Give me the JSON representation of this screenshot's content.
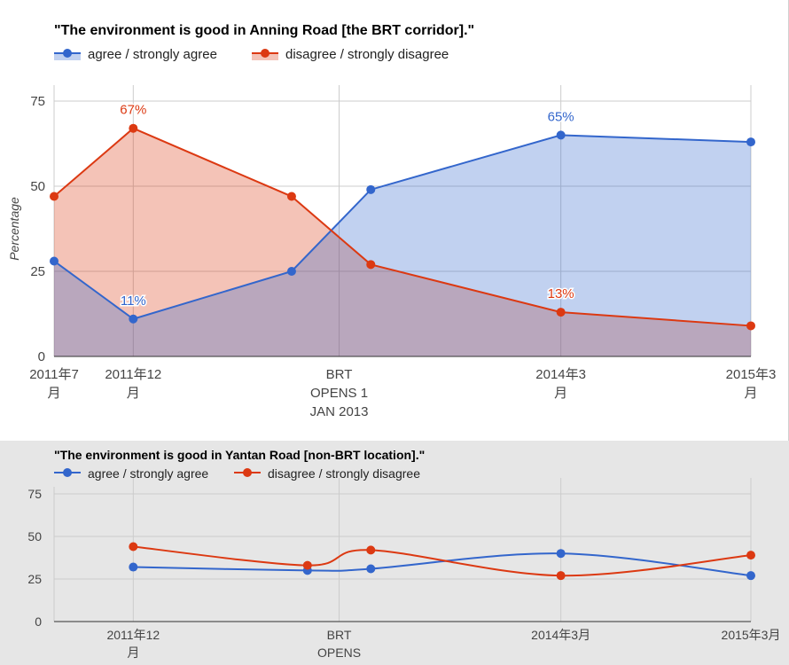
{
  "chart_data": [
    {
      "type": "area",
      "title": "\"The environment is good in Anning Road [the BRT corridor].\"",
      "ylabel": "Percentage",
      "ylim": [
        0,
        75
      ],
      "yticks": [
        0,
        25,
        50,
        75
      ],
      "xticks": [
        {
          "t": 0,
          "lines": [
            "2011年7",
            "月"
          ]
        },
        {
          "t": 5,
          "lines": [
            "2011年12",
            "月"
          ]
        },
        {
          "t": 18,
          "lines": [
            "BRT",
            "OPENS 1",
            "JAN 2013"
          ]
        },
        {
          "t": 32,
          "lines": [
            "2014年3",
            "月"
          ]
        },
        {
          "t": 44,
          "lines": [
            "2015年3",
            "月"
          ]
        }
      ],
      "legend_position": "top-left",
      "series": [
        {
          "name": "agree / strongly agree",
          "color": "#3366cc",
          "points": [
            {
              "t": 0,
              "y": 28
            },
            {
              "t": 5,
              "y": 11
            },
            {
              "t": 15,
              "y": 25
            },
            {
              "t": 20,
              "y": 49
            },
            {
              "t": 32,
              "y": 65
            },
            {
              "t": 44,
              "y": 63
            }
          ]
        },
        {
          "name": "disagree / strongly disagree",
          "color": "#dc3912",
          "points": [
            {
              "t": 0,
              "y": 47
            },
            {
              "t": 5,
              "y": 67
            },
            {
              "t": 15,
              "y": 47
            },
            {
              "t": 20,
              "y": 27
            },
            {
              "t": 32,
              "y": 13
            },
            {
              "t": 44,
              "y": 9
            }
          ]
        }
      ],
      "annotations": [
        {
          "series": 1,
          "t": 5,
          "y": 67,
          "text": "67%"
        },
        {
          "series": 0,
          "t": 5,
          "y": 11,
          "text": "11%"
        },
        {
          "series": 0,
          "t": 32,
          "y": 65,
          "text": "65%"
        },
        {
          "series": 1,
          "t": 32,
          "y": 13,
          "text": "13%"
        }
      ]
    },
    {
      "type": "line",
      "title": "\"The environment is good in Yantan Road [non-BRT location].\"",
      "ylim": [
        0,
        75
      ],
      "yticks": [
        0,
        25,
        50,
        75
      ],
      "xticks": [
        {
          "t": 5,
          "lines": [
            "2011年12",
            "月"
          ]
        },
        {
          "t": 18,
          "lines": [
            "BRT",
            "OPENS"
          ]
        },
        {
          "t": 32,
          "lines": [
            "2014年3月"
          ]
        },
        {
          "t": 44,
          "lines": [
            "2015年3月"
          ]
        }
      ],
      "legend_position": "top-left",
      "series": [
        {
          "name": "agree / strongly agree",
          "color": "#3366cc",
          "points": [
            {
              "t": 5,
              "y": 32
            },
            {
              "t": 16,
              "y": 30
            },
            {
              "t": 20,
              "y": 31
            },
            {
              "t": 32,
              "y": 40
            },
            {
              "t": 44,
              "y": 27
            }
          ]
        },
        {
          "name": "disagree / strongly disagree",
          "color": "#dc3912",
          "points": [
            {
              "t": 5,
              "y": 44
            },
            {
              "t": 16,
              "y": 33
            },
            {
              "t": 20,
              "y": 42
            },
            {
              "t": 32,
              "y": 27
            },
            {
              "t": 44,
              "y": 39
            }
          ]
        }
      ]
    }
  ]
}
